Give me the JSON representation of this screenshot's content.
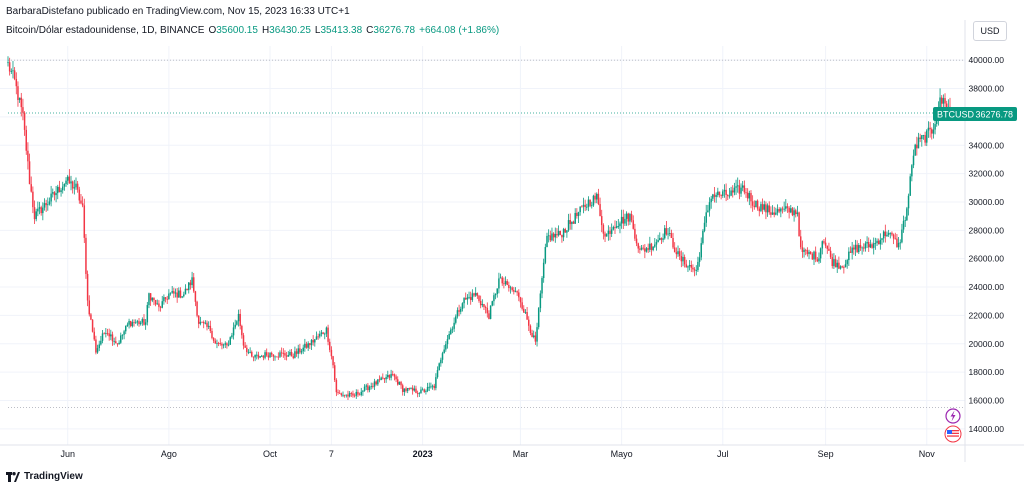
{
  "header": {
    "publisher_line": "BarbaraDistefano publicado en TradingView.com, Nov 15, 2023 16:33 UTC+1"
  },
  "legend": {
    "symbol_desc": "Bitcoin/Dólar estadounidense, 1D, BINANCE",
    "open_key": "O",
    "open_val": "35600.15",
    "high_key": "H",
    "high_val": "36430.25",
    "low_key": "L",
    "low_val": "35413.38",
    "close_key": "C",
    "close_val": "36276.78",
    "change": "+664.08 (+1.86%)"
  },
  "currency_button": "USD",
  "price_badge": {
    "symbol": "BTCUSD",
    "price": "36276.78"
  },
  "footer": {
    "brand": "TradingView"
  },
  "colors": {
    "up": "#089981",
    "down": "#f23645",
    "grid": "#f0f3fa",
    "axis_text": "#131722",
    "badge": "#089981"
  },
  "icons": {
    "flash": "lightning-icon",
    "flag": "us-flag-icon"
  },
  "chart_data": {
    "type": "candlestick",
    "ylim": [
      13000,
      41000
    ],
    "y_ticks": [
      14000,
      16000,
      18000,
      20000,
      22000,
      24000,
      26000,
      28000,
      30000,
      32000,
      34000,
      36000,
      38000,
      40000
    ],
    "y_tick_labels": [
      "14000.00",
      "16000.00",
      "18000.00",
      "20000.00",
      "22000.00",
      "24000.00",
      "26000.00",
      "28000.00",
      "30000.00",
      "32000.00",
      "34000.00",
      "36000.00",
      "38000.00",
      "40000.00"
    ],
    "x_tick_labels": [
      "Jun",
      "Ago",
      "Oct",
      "7",
      "2023",
      "Mar",
      "Mayo",
      "Jul",
      "Sep",
      "Nov"
    ],
    "x_tick_dates": [
      "2022-06-01",
      "2022-08-01",
      "2022-10-01",
      "2022-11-07",
      "2023-01-01",
      "2023-03-01",
      "2023-05-01",
      "2023-07-01",
      "2023-09-01",
      "2023-11-01"
    ],
    "x_range": [
      "2022-04-26",
      "2023-11-15"
    ],
    "current_price": 36276.78,
    "reference_lines": [
      40000,
      15500
    ],
    "anchors": [
      [
        "2022-04-26",
        39700
      ],
      [
        "2022-04-30",
        38500
      ],
      [
        "2022-05-05",
        36000
      ],
      [
        "2022-05-09",
        31500
      ],
      [
        "2022-05-12",
        29000
      ],
      [
        "2022-05-20",
        30000
      ],
      [
        "2022-05-31",
        31500
      ],
      [
        "2022-06-06",
        31000
      ],
      [
        "2022-06-10",
        29500
      ],
      [
        "2022-06-13",
        23000
      ],
      [
        "2022-06-18",
        19500
      ],
      [
        "2022-06-24",
        21000
      ],
      [
        "2022-07-01",
        20000
      ],
      [
        "2022-07-08",
        21500
      ],
      [
        "2022-07-18",
        21500
      ],
      [
        "2022-07-20",
        23500
      ],
      [
        "2022-07-26",
        22500
      ],
      [
        "2022-08-01",
        23500
      ],
      [
        "2022-08-10",
        23500
      ],
      [
        "2022-08-15",
        24500
      ],
      [
        "2022-08-19",
        21500
      ],
      [
        "2022-08-26",
        21000
      ],
      [
        "2022-08-29",
        20000
      ],
      [
        "2022-09-05",
        19800
      ],
      [
        "2022-09-12",
        22000
      ],
      [
        "2022-09-15",
        20000
      ],
      [
        "2022-09-20",
        19000
      ],
      [
        "2022-10-01",
        19300
      ],
      [
        "2022-10-15",
        19200
      ],
      [
        "2022-10-25",
        20000
      ],
      [
        "2022-11-04",
        21000
      ],
      [
        "2022-11-08",
        18500
      ],
      [
        "2022-11-10",
        16500
      ],
      [
        "2022-11-20",
        16300
      ],
      [
        "2022-11-30",
        17000
      ],
      [
        "2022-12-14",
        17800
      ],
      [
        "2022-12-20",
        16800
      ],
      [
        "2022-12-31",
        16600
      ],
      [
        "2023-01-08",
        17000
      ],
      [
        "2023-01-13",
        19500
      ],
      [
        "2023-01-18",
        21000
      ],
      [
        "2023-01-25",
        23000
      ],
      [
        "2023-02-02",
        23500
      ],
      [
        "2023-02-10",
        22000
      ],
      [
        "2023-02-16",
        24500
      ],
      [
        "2023-02-28",
        23400
      ],
      [
        "2023-03-10",
        20000
      ],
      [
        "2023-03-14",
        24500
      ],
      [
        "2023-03-17",
        27500
      ],
      [
        "2023-03-25",
        27700
      ],
      [
        "2023-04-11",
        30000
      ],
      [
        "2023-04-16",
        30300
      ],
      [
        "2023-04-21",
        27500
      ],
      [
        "2023-04-26",
        28400
      ],
      [
        "2023-05-06",
        29000
      ],
      [
        "2023-05-12",
        26500
      ],
      [
        "2023-05-20",
        27000
      ],
      [
        "2023-05-28",
        28000
      ],
      [
        "2023-06-05",
        26000
      ],
      [
        "2023-06-15",
        25100
      ],
      [
        "2023-06-21",
        29000
      ],
      [
        "2023-06-24",
        30500
      ],
      [
        "2023-07-05",
        30500
      ],
      [
        "2023-07-13",
        31000
      ],
      [
        "2023-07-20",
        29900
      ],
      [
        "2023-07-30",
        29300
      ],
      [
        "2023-08-10",
        29400
      ],
      [
        "2023-08-15",
        29300
      ],
      [
        "2023-08-17",
        26500
      ],
      [
        "2023-08-28",
        26100
      ],
      [
        "2023-08-30",
        27500
      ],
      [
        "2023-09-05",
        25800
      ],
      [
        "2023-09-11",
        25500
      ],
      [
        "2023-09-18",
        26700
      ],
      [
        "2023-09-30",
        27000
      ],
      [
        "2023-10-08",
        27900
      ],
      [
        "2023-10-15",
        26900
      ],
      [
        "2023-10-20",
        29500
      ],
      [
        "2023-10-24",
        33500
      ],
      [
        "2023-10-27",
        34200
      ],
      [
        "2023-11-04",
        35000
      ],
      [
        "2023-11-09",
        37000
      ],
      [
        "2023-11-12",
        37200
      ],
      [
        "2023-11-15",
        36276.78
      ]
    ]
  }
}
